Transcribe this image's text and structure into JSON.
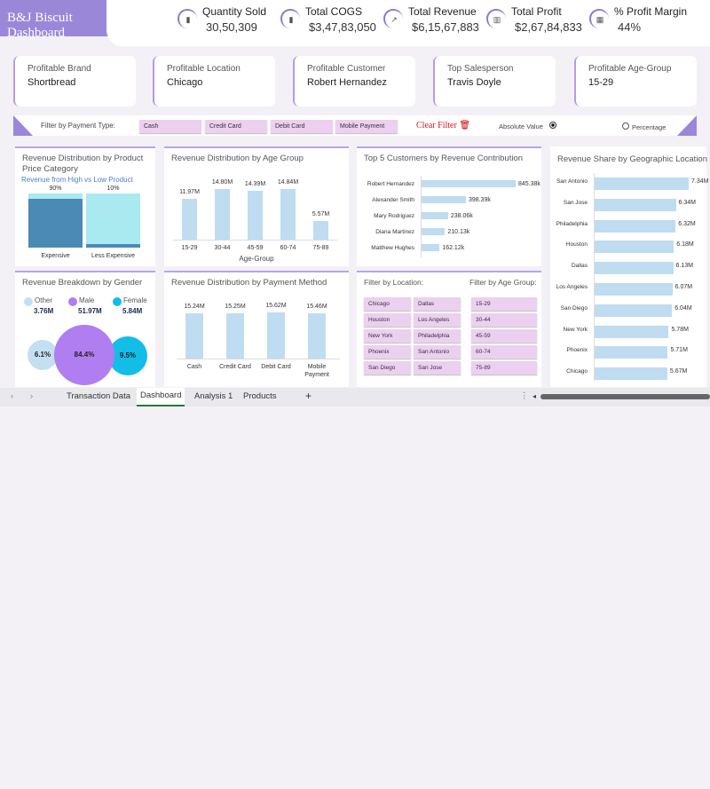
{
  "header": {
    "title": "B&J Biscuit Dashboard"
  },
  "kpis": [
    {
      "label": "Quantity Sold",
      "value": "30,50,309",
      "icon": "bar-chart-icon"
    },
    {
      "label": "Total COGS",
      "value": "$3,47,83,050",
      "icon": "growth-chart-icon"
    },
    {
      "label": "Total Revenue",
      "value": "$6,15,67,883",
      "icon": "trend-up-icon"
    },
    {
      "label": "Total Profit",
      "value": "$2,67,84,833",
      "icon": "profit-chart-icon"
    },
    {
      "label": "% Profit Margin",
      "value": "44%",
      "icon": "margin-chart-icon"
    }
  ],
  "cards": [
    {
      "label": "Profitable Brand",
      "value": "Shortbread"
    },
    {
      "label": "Profitable Location",
      "value": "Chicago"
    },
    {
      "label": "Profitable Customer",
      "value": "Robert Hernandez"
    },
    {
      "label": "Top Salesperson",
      "value": "Travis Doyle"
    },
    {
      "label": "Profitable Age-Group",
      "value": "15-29"
    }
  ],
  "filter": {
    "label": "Filter by Payment Type:",
    "options": [
      "Cash",
      "Credit Card",
      "Debit Card",
      "Mobile Payment"
    ],
    "clear": "Clear Filter",
    "absolute": "Absolute Value",
    "percentage": "Percentage",
    "selected_mode": "Absolute Value"
  },
  "slicers": {
    "location_label": "Filter by Location:",
    "locations": [
      "Chicago",
      "Dallas",
      "Houston",
      "Los Angeles",
      "New York",
      "Philadelphia",
      "Phoenix",
      "San Antonio",
      "San Diego",
      "San Jose"
    ],
    "age_label": "Filter by Age Group:",
    "ages": [
      "15-29",
      "30-44",
      "45-59",
      "60-74",
      "75-89"
    ]
  },
  "colors": {
    "accent": "#9b87d8",
    "bar": "#bfdcf1",
    "dark_blue": "#4a8ab5",
    "light_cyan": "#a9eaf0",
    "male": "#b07ef0",
    "female": "#14bde8",
    "other": "#c5dff2",
    "slicer": "#ecd0f0"
  },
  "chart_data": [
    {
      "type": "bar",
      "title": "Revenue Distribution by Product Price Category",
      "subtitle": "Revenue from High vs Low Product",
      "stacked_percent": true,
      "categories": [
        "Expensive",
        "Less Expensive"
      ],
      "labels": [
        "90%",
        "10%"
      ],
      "series": [
        {
          "values": [
            90,
            10
          ]
        },
        {
          "values": [
            10,
            90
          ]
        }
      ]
    },
    {
      "type": "bar",
      "title": "Revenue Distribution by Age Group",
      "xlabel": "Age-Group",
      "categories": [
        "15-29",
        "30-44",
        "45-59",
        "60-74",
        "75-89"
      ],
      "values": [
        11.97,
        14.8,
        14.39,
        14.84,
        5.57
      ],
      "labels": [
        "11.97M",
        "14.80M",
        "14.39M",
        "14.84M",
        "5.57M"
      ]
    },
    {
      "type": "bar",
      "orientation": "horizontal",
      "title": "Top 5 Customers by Revenue Contribution",
      "categories": [
        "Robert Hernandez",
        "Alexander Smith",
        "Mary Rodriguez",
        "Diana Martinez",
        "Matthew Hughes"
      ],
      "values": [
        845.38,
        398.39,
        238.06,
        210.13,
        162.12
      ],
      "labels": [
        "845.38k",
        "398.39k",
        "238.06k",
        "210.13k",
        "162.12k"
      ]
    },
    {
      "type": "bar",
      "orientation": "horizontal",
      "title": "Revenue Share by Geographic Location",
      "categories": [
        "San Antonio",
        "San Jose",
        "Philadelphia",
        "Houston",
        "Dallas",
        "Los Angeles",
        "San Diego",
        "New York",
        "Phoenix",
        "Chicago"
      ],
      "values": [
        7.34,
        6.34,
        6.32,
        6.18,
        6.13,
        6.07,
        6.04,
        5.78,
        5.71,
        5.67
      ],
      "labels": [
        "7.34M",
        "6.34M",
        "6.32M",
        "6.18M",
        "6.13M",
        "6.07M",
        "6.04M",
        "5.78M",
        "5.71M",
        "5.67M"
      ]
    },
    {
      "type": "scatter",
      "title": "Revenue Breakdown by Gender",
      "categories": [
        "Other",
        "Male",
        "Female"
      ],
      "values": [
        3.76,
        51.97,
        5.84
      ],
      "labels": [
        "3.76M",
        "51.97M",
        "5.84M"
      ],
      "percent_labels": [
        "6.1%",
        "84.4%",
        "9.5%"
      ]
    },
    {
      "type": "bar",
      "title": "Revenue Distribution by Payment Method",
      "categories": [
        "Cash",
        "Credit Card",
        "Debit Card",
        "Mobile Payment"
      ],
      "values": [
        15.24,
        15.25,
        15.62,
        15.46
      ],
      "labels": [
        "15.24M",
        "15.25M",
        "15.62M",
        "15.46M"
      ]
    }
  ],
  "tabs": {
    "items": [
      "Transaction Data",
      "Dashboard",
      "Analysis 1",
      "Products"
    ],
    "active": "Dashboard",
    "add": "+"
  }
}
